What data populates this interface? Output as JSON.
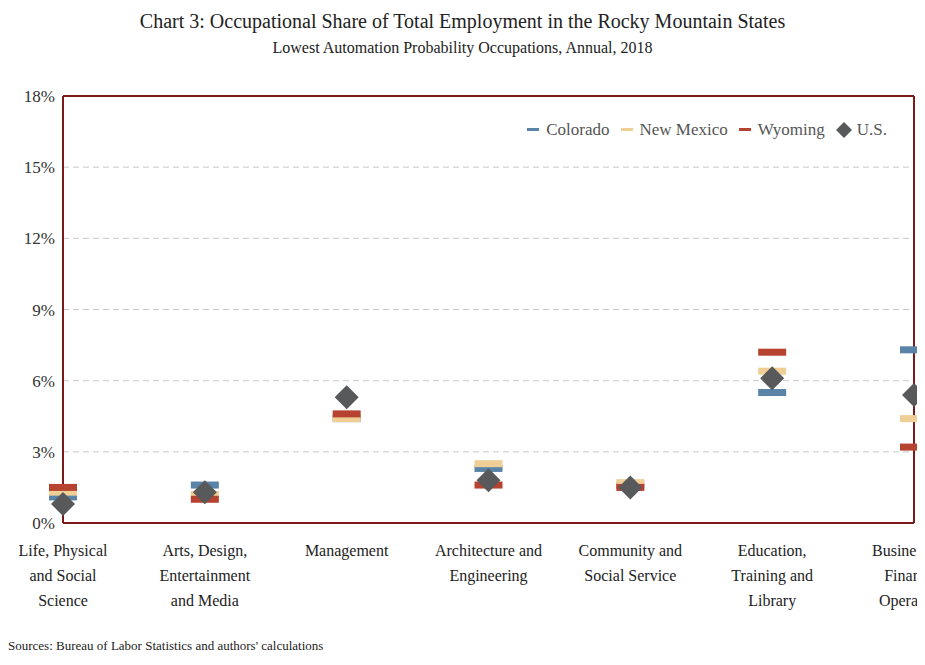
{
  "chart_data": {
    "type": "scatter",
    "title": "Chart 3: Occupational Share of Total Employment in the Rocky Mountain States",
    "subtitle": "Lowest Automation Probability Occupations, Annual, 2018",
    "source": "Sources: Bureau of Labor Statistics and authors' calculations",
    "categories": [
      "Life, Physical and Social Science",
      "Arts, Design, Entertainment and Media",
      "Management",
      "Architecture and Engineering",
      "Community and Social Service",
      "Education, Training and Library",
      "Business and Financial Operations"
    ],
    "series": [
      {
        "name": "Colorado",
        "color": "#5a83a8",
        "marker": "dash",
        "values": [
          1.1,
          1.6,
          4.4,
          2.3,
          1.6,
          5.5,
          7.3
        ]
      },
      {
        "name": "New Mexico",
        "color": "#efcf95",
        "marker": "dash",
        "values": [
          1.3,
          1.2,
          4.4,
          2.5,
          1.7,
          6.4,
          4.4
        ]
      },
      {
        "name": "Wyoming",
        "color": "#b5432f",
        "marker": "dash",
        "values": [
          1.5,
          1.0,
          4.6,
          1.6,
          1.5,
          7.2,
          3.2
        ]
      },
      {
        "name": "U.S.",
        "color": "#58595b",
        "marker": "diamond",
        "values": [
          0.8,
          1.3,
          5.3,
          1.8,
          1.5,
          6.1,
          5.4
        ]
      }
    ],
    "ylim": [
      0,
      18
    ],
    "yticks": [
      {
        "value": 0,
        "label": "0%"
      },
      {
        "value": 3,
        "label": "3%"
      },
      {
        "value": 6,
        "label": "6%"
      },
      {
        "value": 9,
        "label": "9%"
      },
      {
        "value": 12,
        "label": "12%"
      },
      {
        "value": 15,
        "label": "15%"
      },
      {
        "value": 18,
        "label": "18%"
      }
    ],
    "grid": true,
    "legend": "top right"
  }
}
